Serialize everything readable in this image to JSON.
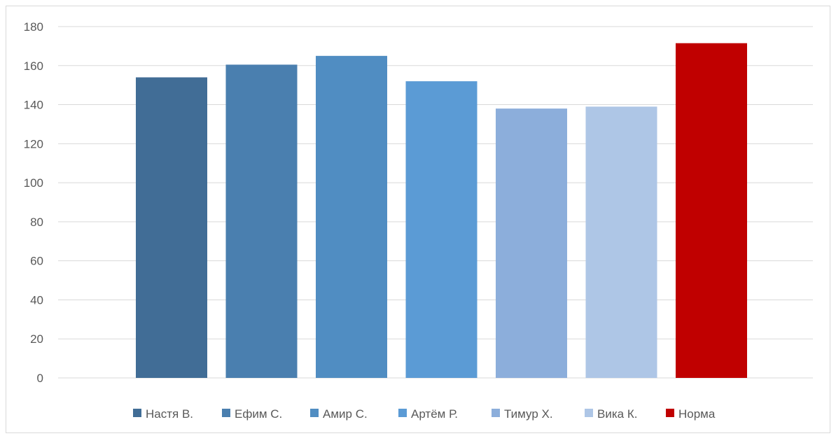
{
  "chart_data": {
    "type": "bar",
    "categories": [
      "Настя В.",
      "Ефим С.",
      "Амир С.",
      "Артём Р.",
      "Тимур Х.",
      "Вика К.",
      "Норма"
    ],
    "series": [
      {
        "name": "Настя В.",
        "value": 154,
        "color": "#416d96"
      },
      {
        "name": "Ефим С.",
        "value": 160.5,
        "color": "#4a7faf"
      },
      {
        "name": "Амир С.",
        "value": 165,
        "color": "#508dc2"
      },
      {
        "name": "Артём Р.",
        "value": 152,
        "color": "#5b9bd5"
      },
      {
        "name": "Тимур Х.",
        "value": 138,
        "color": "#8caedb"
      },
      {
        "name": "Вика К.",
        "value": 139,
        "color": "#aec6e6"
      },
      {
        "name": "Норма",
        "value": 171.5,
        "color": "#c00000"
      }
    ],
    "ylim": [
      0,
      180
    ],
    "yticks": [
      "0",
      "20",
      "40",
      "60",
      "80",
      "100",
      "120",
      "140",
      "160",
      "180"
    ],
    "title": "",
    "xlabel": "",
    "ylabel": "",
    "grid": true,
    "legend_position": "bottom"
  }
}
